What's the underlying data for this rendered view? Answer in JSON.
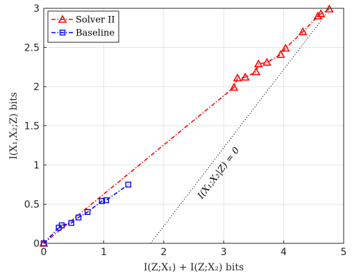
{
  "chart_data": {
    "type": "line",
    "xlabel": "I(Z;X₁) + I(Z;X₂) bits",
    "ylabel": "I(X₁,X₂;Z) bits",
    "xlim": [
      0,
      5
    ],
    "ylim": [
      0,
      3
    ],
    "xticks": [
      "0",
      "1",
      "2",
      "3",
      "4",
      "5"
    ],
    "yticks": [
      "0",
      "0.5",
      "1",
      "1.5",
      "2",
      "2.5",
      "3"
    ],
    "grid": true,
    "legend_position": "top-left",
    "series": [
      {
        "name": "Solver II",
        "color": "#ff0000",
        "marker": "triangle",
        "linestyle": "dash-dot",
        "x": [
          0,
          3.17,
          3.23,
          3.36,
          3.54,
          3.58,
          3.72,
          3.95,
          4.03,
          4.32,
          4.57,
          4.62,
          4.76
        ],
        "y": [
          0,
          1.99,
          2.11,
          2.12,
          2.19,
          2.29,
          2.31,
          2.41,
          2.49,
          2.7,
          2.9,
          2.93,
          2.99
        ]
      },
      {
        "name": "Baseline",
        "color": "#0000ff",
        "marker": "square",
        "linestyle": "dash-dot",
        "x": [
          0,
          0.25,
          0.3,
          0.46,
          0.58,
          0.73,
          0.97,
          1.04,
          1.41
        ],
        "y": [
          0,
          0.2,
          0.23,
          0.26,
          0.33,
          0.4,
          0.54,
          0.55,
          0.75
        ]
      }
    ],
    "reference_line": {
      "label": "I(X₁;X₂|Z) = 0",
      "style": "dotted",
      "color": "#000000",
      "x": [
        1.78,
        4.7
      ],
      "y": [
        0,
        2.92
      ]
    }
  }
}
